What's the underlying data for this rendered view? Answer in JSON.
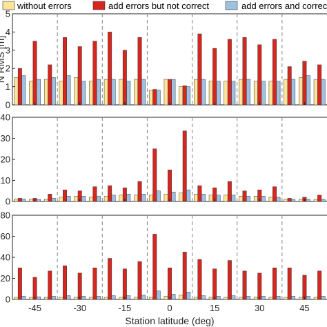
{
  "chart_data": [
    {
      "type": "bar",
      "ylabel": "N RMS [m]",
      "ylim": [
        0,
        5
      ],
      "yticks": [
        0,
        1,
        2,
        3,
        4,
        5
      ],
      "x": [
        -50,
        -45,
        -40,
        -35,
        -30,
        -25,
        -20,
        -15,
        -10,
        -5,
        0,
        5,
        10,
        15,
        20,
        25,
        30,
        35,
        40,
        45,
        50
      ],
      "series": [
        {
          "name": "without errors",
          "values": [
            1.5,
            1.3,
            1.4,
            1.3,
            1.5,
            1.3,
            1.4,
            1.4,
            1.4,
            0.8,
            1.4,
            1.0,
            1.4,
            1.3,
            1.3,
            1.4,
            1.3,
            1.3,
            1.4,
            1.5,
            1.4
          ]
        },
        {
          "name": "add errors but not correct",
          "values": [
            2.0,
            3.5,
            2.2,
            3.7,
            3.2,
            3.5,
            4.0,
            3.0,
            3.7,
            0.85,
            1.4,
            1.05,
            3.9,
            3.1,
            3.6,
            3.7,
            3.3,
            3.6,
            2.1,
            2.4,
            2.2
          ]
        },
        {
          "name": "add errors and correct",
          "values": [
            1.6,
            1.4,
            1.5,
            1.6,
            1.3,
            1.4,
            1.4,
            1.3,
            1.4,
            0.8,
            1.4,
            1.0,
            1.4,
            1.3,
            1.3,
            1.4,
            1.3,
            1.3,
            1.4,
            1.6,
            1.4
          ]
        }
      ]
    },
    {
      "type": "bar",
      "ylabel": "",
      "ylim": [
        0,
        40
      ],
      "yticks": [
        0,
        10,
        20,
        30,
        40
      ],
      "x": [
        -50,
        -45,
        -40,
        -35,
        -30,
        -25,
        -20,
        -15,
        -10,
        -5,
        0,
        5,
        10,
        15,
        20,
        25,
        30,
        35,
        40,
        45,
        50
      ],
      "series": [
        {
          "name": "without errors",
          "values": [
            1.2,
            1.0,
            1.0,
            2.0,
            2.5,
            2.0,
            2.5,
            3.0,
            3.0,
            3.0,
            3.5,
            4.0,
            3.5,
            3.0,
            3.0,
            2.5,
            2.5,
            2.0,
            1.0,
            1.0,
            1.0
          ]
        },
        {
          "name": "add errors but not correct",
          "values": [
            1.5,
            1.5,
            3.5,
            5.5,
            5.0,
            7.0,
            7.5,
            6.5,
            9.5,
            25.0,
            15.0,
            33.5,
            7.5,
            6.5,
            9.5,
            5.0,
            5.5,
            7.0,
            1.5,
            2.0,
            3.0
          ]
        },
        {
          "name": "add errors and correct",
          "values": [
            1.2,
            1.0,
            1.5,
            2.5,
            2.5,
            2.5,
            3.0,
            3.5,
            3.5,
            5.0,
            4.5,
            5.5,
            3.5,
            3.0,
            3.0,
            2.5,
            2.5,
            2.0,
            1.0,
            1.0,
            1.0
          ]
        }
      ]
    },
    {
      "type": "bar",
      "xlabel": "Station latitude (deg)",
      "ylabel": "",
      "ylim": [
        0,
        80
      ],
      "yticks": [
        0,
        20,
        40,
        60,
        80
      ],
      "xticks": [
        -45,
        -30,
        -15,
        0,
        15,
        30,
        45
      ],
      "x": [
        -50,
        -45,
        -40,
        -35,
        -30,
        -25,
        -20,
        -15,
        -10,
        -5,
        0,
        5,
        10,
        15,
        20,
        25,
        30,
        35,
        40,
        45,
        50
      ],
      "series": [
        {
          "name": "without errors",
          "values": [
            2.0,
            2.0,
            2.0,
            2.0,
            2.0,
            2.0,
            2.0,
            2.0,
            2.0,
            2.0,
            3.0,
            4.0,
            2.0,
            2.0,
            2.0,
            2.0,
            2.0,
            2.0,
            2.0,
            2.0,
            2.0
          ]
        },
        {
          "name": "add errors but not correct",
          "values": [
            30,
            21,
            27,
            32,
            25,
            30,
            39,
            29,
            36,
            62,
            30,
            45,
            38,
            29,
            37,
            27,
            25,
            30,
            30,
            23,
            27
          ]
        },
        {
          "name": "add errors and correct",
          "values": [
            3.0,
            2.5,
            3.0,
            3.5,
            3.0,
            3.0,
            3.5,
            3.5,
            4.0,
            8.0,
            5.0,
            7.0,
            3.5,
            3.0,
            3.5,
            3.0,
            3.0,
            3.0,
            3.0,
            3.0,
            3.0
          ]
        }
      ]
    }
  ],
  "legend": {
    "placement": "top",
    "items": [
      {
        "label": "without errors",
        "color": "#fde49b"
      },
      {
        "label": "add errors but not correct",
        "color": "#d7261e"
      },
      {
        "label": "add errors and correct",
        "color": "#9ec1e2"
      }
    ]
  },
  "colors": {
    "without_errors": "#fde49b",
    "not_corrected": "#d7261e",
    "corrected": "#9ec1e2",
    "bar_edge": "#333333",
    "separator": "#7f7f7f",
    "axis": "#262626"
  },
  "separators_deg": [
    -37.5,
    -22.5,
    -7.5,
    7.5,
    22.5,
    37.5
  ]
}
